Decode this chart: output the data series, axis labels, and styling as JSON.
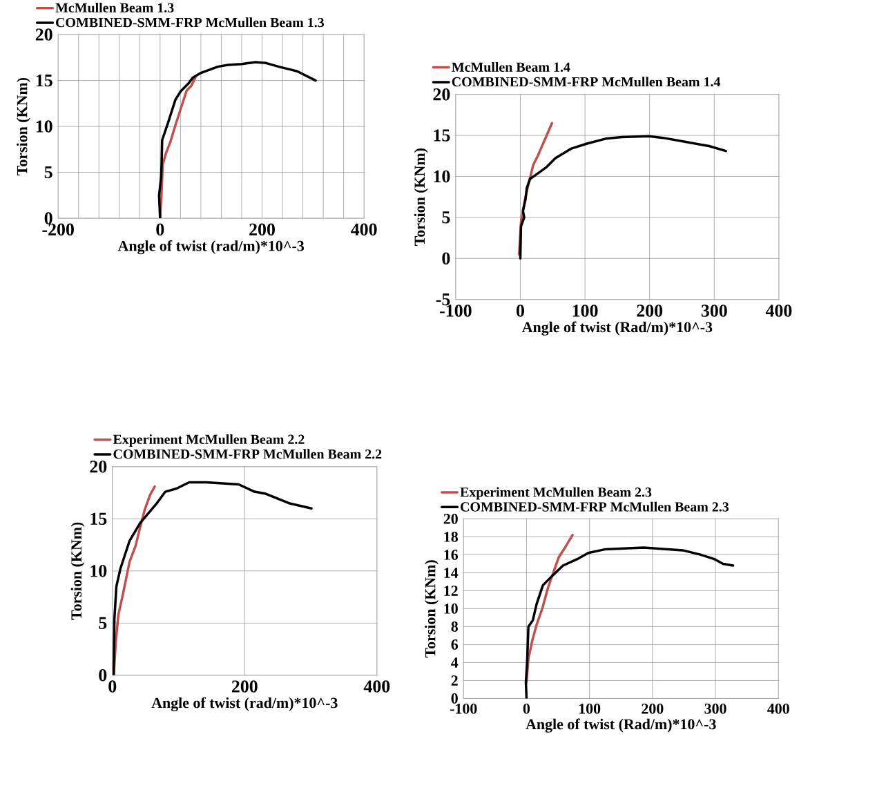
{
  "chart_data": [
    {
      "type": "line",
      "xlabel": "Angle of twist (rad/m)*10^-3",
      "ylabel": "Torsion (KNm)",
      "legend": "top left",
      "grid": true,
      "xlim": [
        -200,
        400
      ],
      "ylim": [
        0,
        20
      ],
      "xticks": [
        -200,
        {
          "value": -160,
          "label": null
        },
        {
          "value": -120,
          "label": null
        },
        {
          "value": -80,
          "label": null
        },
        {
          "value": -40,
          "label": null
        },
        0,
        {
          "value": 40,
          "label": null
        },
        {
          "value": 80,
          "label": null
        },
        {
          "value": 120,
          "label": null
        },
        {
          "value": 160,
          "label": null
        },
        200,
        {
          "value": 240,
          "label": null
        },
        {
          "value": 280,
          "label": null
        },
        {
          "value": 320,
          "label": null
        },
        {
          "value": 360,
          "label": null
        },
        400
      ],
      "yticks": [
        0,
        5,
        10,
        15,
        20
      ],
      "series": [
        {
          "name": "McMullen Beam 1.3",
          "color": "#c0504d",
          "x": [
            0,
            2.7,
            5,
            11,
            20,
            31,
            52,
            61,
            69
          ],
          "values": [
            0,
            2.5,
            5.8,
            7,
            8.3,
            10.3,
            13.9,
            14.4,
            15.3
          ]
        },
        {
          "name": "COMBINED-SMM-FRP   McMullen Beam 1.3",
          "color": "#000000",
          "x": [
            0,
            -2,
            2,
            3,
            4,
            15,
            30,
            40,
            56,
            64,
            79,
            113,
            133,
            160,
            187,
            208,
            233,
            255,
            269,
            305
          ],
          "values": [
            0,
            2.5,
            4.5,
            6,
            8.5,
            10.3,
            12.9,
            13.8,
            14.7,
            15.3,
            15.8,
            16.5,
            16.7,
            16.8,
            17,
            16.9,
            16.5,
            16.2,
            16,
            15
          ]
        }
      ]
    },
    {
      "type": "line",
      "xlabel": "Angle of twist (Rad/m)*10^-3",
      "ylabel": "Torsion (KNm)",
      "legend": "top left",
      "grid": true,
      "xlim": [
        -100,
        400
      ],
      "ylim": [
        -5,
        20
      ],
      "xticks": [
        -100,
        0,
        100,
        200,
        300,
        400
      ],
      "yticks": [
        -5,
        0,
        5,
        10,
        15,
        20
      ],
      "series": [
        {
          "name": "McMullen Beam 1.4",
          "color": "#c0504d",
          "x": [
            -2,
            1,
            8,
            13,
            20,
            27,
            38,
            49
          ],
          "values": [
            0.5,
            4.4,
            7.5,
            9.2,
            11.4,
            12.5,
            14.5,
            16.5
          ]
        },
        {
          "name": "COMBINED-SMM-FRP  McMullen Beam 1.4",
          "color": "#000000",
          "x": [
            0,
            1,
            6,
            4,
            8,
            10,
            15,
            26,
            40,
            54,
            79,
            103,
            132,
            157,
            199,
            221,
            256,
            292,
            318
          ],
          "values": [
            0,
            3.9,
            5,
            5.8,
            7.2,
            8.6,
            9.7,
            10.3,
            11.1,
            12.2,
            13.4,
            14,
            14.6,
            14.8,
            14.9,
            14.7,
            14.2,
            13.7,
            13.1
          ]
        }
      ]
    },
    {
      "type": "line",
      "xlabel": "Angle of twist (rad/m)*10^-3",
      "ylabel": "Torsion (KNm)",
      "legend": "top left",
      "grid": true,
      "xlim": [
        0,
        400
      ],
      "ylim": [
        0,
        20
      ],
      "xticks": [
        0,
        200,
        400
      ],
      "yticks": [
        0,
        5,
        10,
        15,
        20
      ],
      "series": [
        {
          "name": "Experiment McMullen Beam 2.2",
          "color": "#c0504d",
          "x": [
            2,
            5,
            9,
            16,
            26,
            35,
            42,
            49,
            57,
            64
          ],
          "values": [
            0,
            3.1,
            5.8,
            7.8,
            10.9,
            12.4,
            14.2,
            15.9,
            17.3,
            18.1
          ]
        },
        {
          "name": "COMBINED-SMM-FRP  McMullen Beam 2.2",
          "color": "#000000",
          "x": [
            2,
            3,
            6,
            12,
            26,
            42,
            66,
            80,
            97,
            116,
            142,
            191,
            215,
            232,
            267,
            301
          ],
          "values": [
            0,
            5.4,
            8.5,
            10.2,
            12.9,
            14.6,
            16.4,
            17.6,
            17.9,
            18.5,
            18.5,
            18.3,
            17.6,
            17.4,
            16.5,
            16
          ]
        }
      ]
    },
    {
      "type": "line",
      "xlabel": "Angle of twist (Rad/m)*10^-3",
      "ylabel": "Torsion (KNm)",
      "legend": "top left",
      "grid": true,
      "xlim": [
        -100,
        400
      ],
      "ylim": [
        0,
        20
      ],
      "xticks": [
        -100,
        0,
        100,
        200,
        300,
        400
      ],
      "yticks": [
        0,
        2,
        4,
        6,
        8,
        10,
        12,
        14,
        16,
        18,
        20
      ],
      "series": [
        {
          "name": "Experiment McMullen Beam 2.3",
          "color": "#c0504d",
          "x": [
            0,
            3,
            9,
            16,
            25,
            34,
            43,
            51,
            62,
            73
          ],
          "values": [
            1.8,
            4.4,
            6.4,
            8.2,
            10,
            12.3,
            14.1,
            15.7,
            16.9,
            18.2
          ]
        },
        {
          "name": "COMBINED-SMM-FRP   McMullen Beam 2.3",
          "color": "#000000",
          "x": [
            0,
            -1,
            1,
            3,
            10,
            16,
            26,
            40,
            58,
            80,
            98,
            124,
            186,
            248,
            277,
            299,
            312,
            328
          ],
          "values": [
            0,
            1.8,
            4.1,
            8,
            8.7,
            10.5,
            12.6,
            13.6,
            14.8,
            15.5,
            16.2,
            16.6,
            16.8,
            16.5,
            16,
            15.5,
            15,
            14.8
          ]
        }
      ]
    }
  ]
}
